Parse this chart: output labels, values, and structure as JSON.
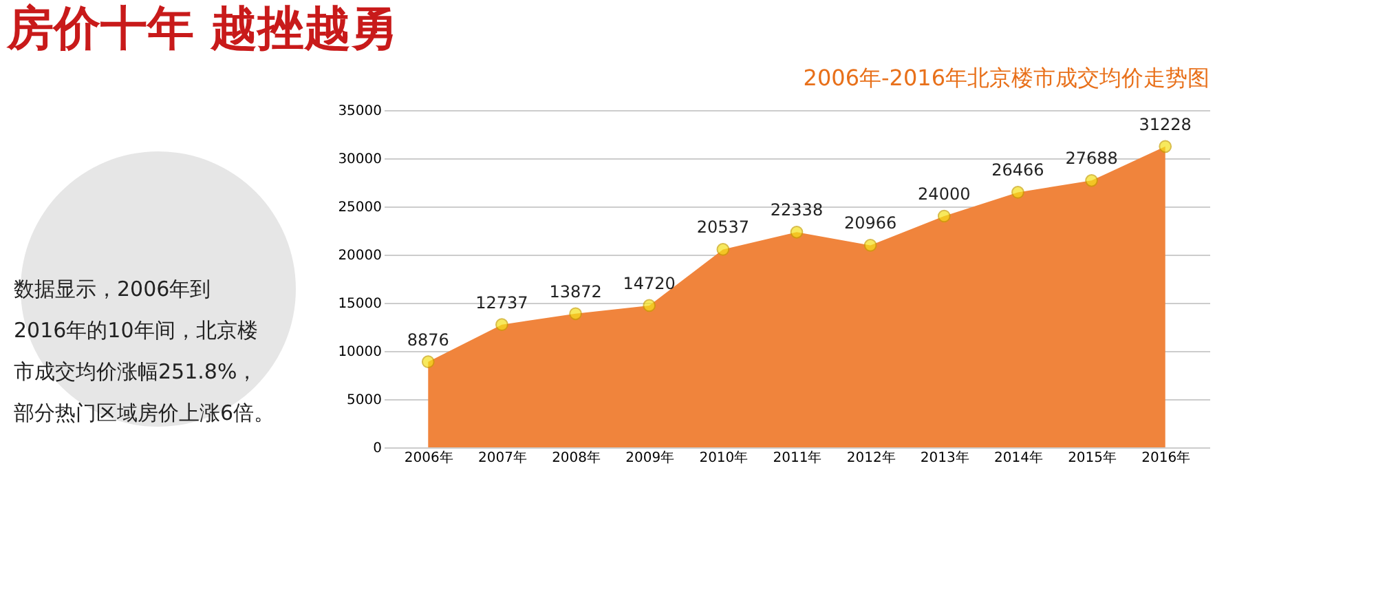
{
  "chart_data": {
    "type": "area",
    "title": "房价十年  越挫越勇",
    "subtitle": "2006年-2016年北京楼市成交均价走势图",
    "categories": [
      "2006年",
      "2007年",
      "2008年",
      "2009年",
      "2010年",
      "2011年",
      "2012年",
      "2013年",
      "2014年",
      "2015年",
      "2016年"
    ],
    "values": [
      8876,
      12737,
      13872,
      14720,
      20537,
      22338,
      20966,
      24000,
      26466,
      27688,
      31228
    ],
    "color": "#f0843c",
    "ylim": [
      0,
      35000
    ],
    "yticks": [
      0,
      5000,
      10000,
      15000,
      20000,
      25000,
      30000,
      35000
    ],
    "grid": "y",
    "marker": "circle",
    "data_labels": true,
    "annotations": [
      "数据显示，2006年到2016年的10年间，北京楼市成交均价涨幅251.8%，部分热门区域房价上涨6倍。"
    ]
  }
}
